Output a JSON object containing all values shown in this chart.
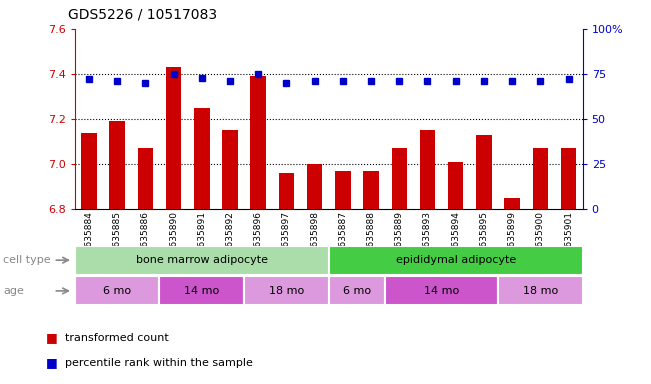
{
  "title": "GDS5226 / 10517083",
  "samples": [
    "GSM635884",
    "GSM635885",
    "GSM635886",
    "GSM635890",
    "GSM635891",
    "GSM635892",
    "GSM635896",
    "GSM635897",
    "GSM635898",
    "GSM635887",
    "GSM635888",
    "GSM635889",
    "GSM635893",
    "GSM635894",
    "GSM635895",
    "GSM635899",
    "GSM635900",
    "GSM635901"
  ],
  "red_values": [
    7.14,
    7.19,
    7.07,
    7.43,
    7.25,
    7.15,
    7.39,
    6.96,
    7.0,
    6.97,
    6.97,
    7.07,
    7.15,
    7.01,
    7.13,
    6.85,
    7.07,
    7.07
  ],
  "blue_values": [
    72,
    71,
    70,
    75,
    73,
    71,
    75,
    70,
    71,
    71,
    71,
    71,
    71,
    71,
    71,
    71,
    71,
    72
  ],
  "ylim_left": [
    6.8,
    7.6
  ],
  "ylim_right": [
    0,
    100
  ],
  "yticks_left": [
    6.8,
    7.0,
    7.2,
    7.4,
    7.6
  ],
  "yticks_right": [
    0,
    25,
    50,
    75,
    100
  ],
  "ytick_labels_right": [
    "0",
    "25",
    "50",
    "75",
    "100%"
  ],
  "bar_color": "#cc0000",
  "dot_color": "#0000cc",
  "cell_type_groups": [
    {
      "label": "bone marrow adipocyte",
      "start": 0,
      "end": 9,
      "color": "#aaddaa"
    },
    {
      "label": "epididymal adipocyte",
      "start": 9,
      "end": 18,
      "color": "#44cc44"
    }
  ],
  "age_groups": [
    {
      "label": "6 mo",
      "start": 0,
      "end": 3,
      "color": "#dd99dd"
    },
    {
      "label": "14 mo",
      "start": 3,
      "end": 6,
      "color": "#cc55cc"
    },
    {
      "label": "18 mo",
      "start": 6,
      "end": 9,
      "color": "#dd99dd"
    },
    {
      "label": "6 mo",
      "start": 9,
      "end": 11,
      "color": "#dd99dd"
    },
    {
      "label": "14 mo",
      "start": 11,
      "end": 15,
      "color": "#cc55cc"
    },
    {
      "label": "18 mo",
      "start": 15,
      "end": 18,
      "color": "#dd99dd"
    }
  ],
  "legend_items": [
    {
      "label": "transformed count",
      "color": "#cc0000"
    },
    {
      "label": "percentile rank within the sample",
      "color": "#0000cc"
    }
  ],
  "cell_type_label": "cell type",
  "age_label": "age",
  "grid_yticks": [
    7.0,
    7.2,
    7.4
  ]
}
